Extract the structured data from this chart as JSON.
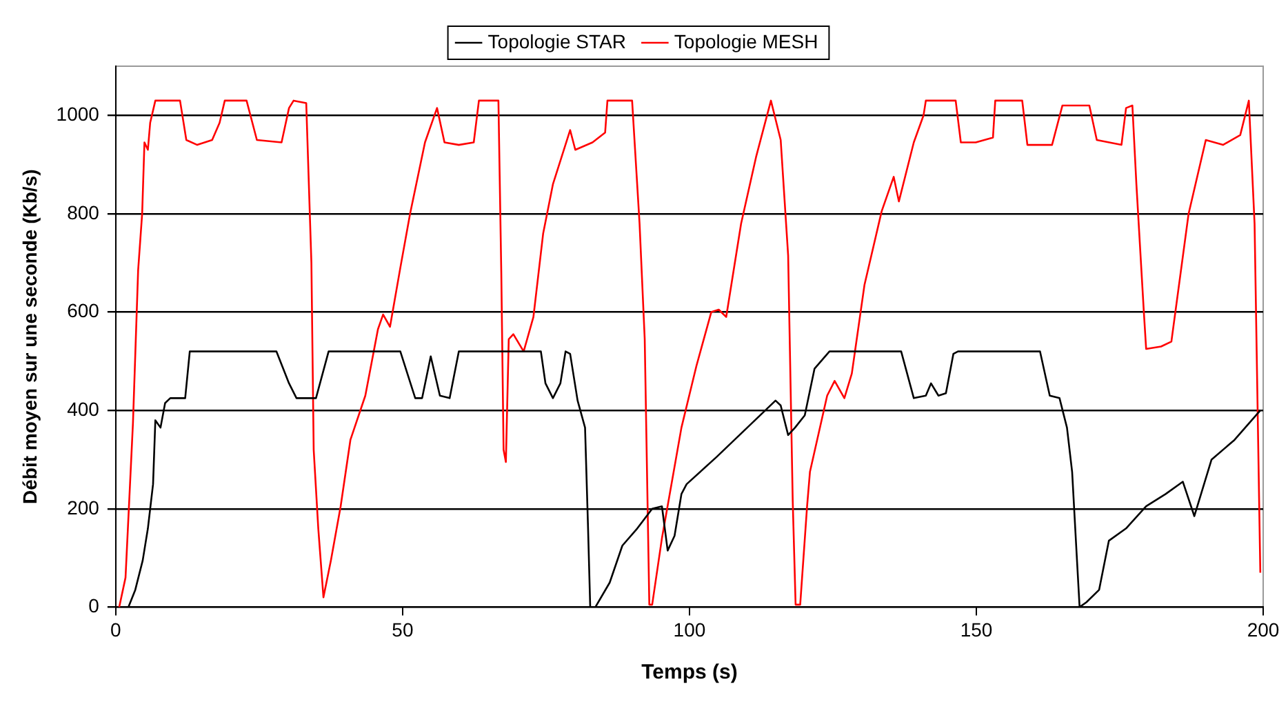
{
  "chart_data": {
    "type": "line",
    "xlabel": "Temps (s)",
    "ylabel": "Débit moyen sur une seconde (Kb/s)",
    "xlim": [
      0,
      200
    ],
    "xticks": [
      0,
      50,
      100,
      150,
      200
    ],
    "ylim": [
      0,
      1100
    ],
    "yticks": [
      0,
      200,
      400,
      600,
      800,
      1000
    ],
    "grid": "y",
    "legend": "top",
    "marker": "none",
    "line_style": "solid",
    "series": [
      {
        "name": "Topologie STAR",
        "color": "#000000",
        "x": [
          2.2,
          3.4,
          4.7,
          5.6,
          6.5,
          6.9,
          7.8,
          8.6,
          9.5,
          12.1,
          12.9,
          28.0,
          30.2,
          31.5,
          34.9,
          37.1,
          49.6,
          52.2,
          53.4,
          54.9,
          56.5,
          58.2,
          59.8,
          74.1,
          74.9,
          76.2,
          77.5,
          78.4,
          79.2,
          80.5,
          81.8,
          82.3,
          82.7,
          83.6,
          86.1,
          88.3,
          90.9,
          93.5,
          95.2,
          96.2,
          97.4,
          98.6,
          99.5,
          104.7,
          115.0,
          115.9,
          117.2,
          118.4,
          120.1,
          121.8,
          124.4,
          136.9,
          139.1,
          141.2,
          142.1,
          143.4,
          144.7,
          146.0,
          146.8,
          161.1,
          162.8,
          164.5,
          165.8,
          166.7,
          167.5,
          168.0,
          169.2,
          171.4,
          173.1,
          176.1,
          179.6,
          183.0,
          186.0,
          188.0,
          191.0,
          195.0,
          199.5
        ],
        "values": [
          0,
          35,
          95,
          160,
          250,
          380,
          365,
          415,
          425,
          425,
          520,
          520,
          455,
          425,
          425,
          520,
          520,
          425,
          425,
          510,
          430,
          425,
          520,
          520,
          455,
          425,
          455,
          520,
          515,
          420,
          365,
          170,
          0,
          0,
          50,
          125,
          160,
          200,
          205,
          115,
          145,
          230,
          250,
          305,
          420,
          410,
          350,
          365,
          390,
          485,
          520,
          520,
          425,
          430,
          455,
          430,
          435,
          515,
          520,
          520,
          430,
          425,
          365,
          275,
          105,
          0,
          10,
          35,
          135,
          160,
          205,
          230,
          255,
          185,
          300,
          340,
          400
        ]
      },
      {
        "name": "Topologie MESH",
        "color": "#ff0000",
        "x": [
          0.6,
          1.7,
          2.3,
          3.0,
          3.9,
          4.6,
          5.0,
          5.6,
          6.0,
          6.9,
          11.2,
          12.3,
          14.2,
          16.8,
          18.1,
          19.0,
          22.8,
          24.6,
          28.9,
          30.2,
          31.0,
          33.2,
          34.1,
          34.5,
          35.3,
          36.2,
          37.5,
          39.2,
          40.9,
          43.5,
          45.7,
          46.6,
          47.8,
          49.6,
          51.3,
          53.9,
          56.0,
          57.3,
          59.8,
          62.4,
          63.3,
          66.7,
          67.2,
          67.6,
          68.0,
          68.5,
          69.3,
          71.1,
          72.8,
          74.5,
          76.2,
          79.2,
          80.1,
          83.1,
          85.3,
          85.7,
          90.0,
          91.3,
          92.2,
          93.0,
          93.5,
          95.2,
          98.6,
          101.2,
          103.8,
          105.1,
          106.4,
          109.0,
          111.6,
          114.2,
          115.9,
          117.2,
          118.0,
          118.5,
          119.3,
          120.5,
          121.0,
          124.0,
          125.3,
          127.0,
          128.3,
          130.5,
          133.5,
          135.6,
          136.5,
          139.1,
          140.8,
          141.2,
          146.4,
          147.3,
          149.9,
          152.9,
          153.3,
          158.0,
          158.9,
          163.2,
          165.0,
          169.7,
          171.0,
          175.3,
          176.1,
          177.2,
          177.9,
          179.2,
          179.6,
          182.2,
          184.0,
          187.0,
          190.0,
          193.0,
          196.0,
          197.5,
          198.5,
          199.5
        ],
        "values": [
          0,
          60,
          205,
          375,
          685,
          800,
          945,
          930,
          985,
          1030,
          1030,
          950,
          940,
          950,
          985,
          1030,
          1030,
          950,
          945,
          1015,
          1030,
          1025,
          700,
          320,
          160,
          20,
          95,
          205,
          340,
          430,
          565,
          595,
          570,
          690,
          800,
          945,
          1015,
          945,
          940,
          945,
          1030,
          1030,
          680,
          320,
          295,
          545,
          555,
          520,
          590,
          760,
          860,
          970,
          930,
          945,
          965,
          1030,
          1030,
          780,
          545,
          5,
          5,
          140,
          365,
          490,
          600,
          605,
          590,
          780,
          915,
          1030,
          950,
          715,
          215,
          5,
          5,
          205,
          275,
          430,
          460,
          425,
          475,
          655,
          805,
          875,
          825,
          945,
          1000,
          1030,
          1030,
          945,
          945,
          955,
          1030,
          1030,
          940,
          940,
          1020,
          1020,
          950,
          940,
          1015,
          1020,
          860,
          600,
          525,
          530,
          540,
          800,
          950,
          940,
          960,
          1030,
          780,
          70
        ]
      }
    ]
  }
}
